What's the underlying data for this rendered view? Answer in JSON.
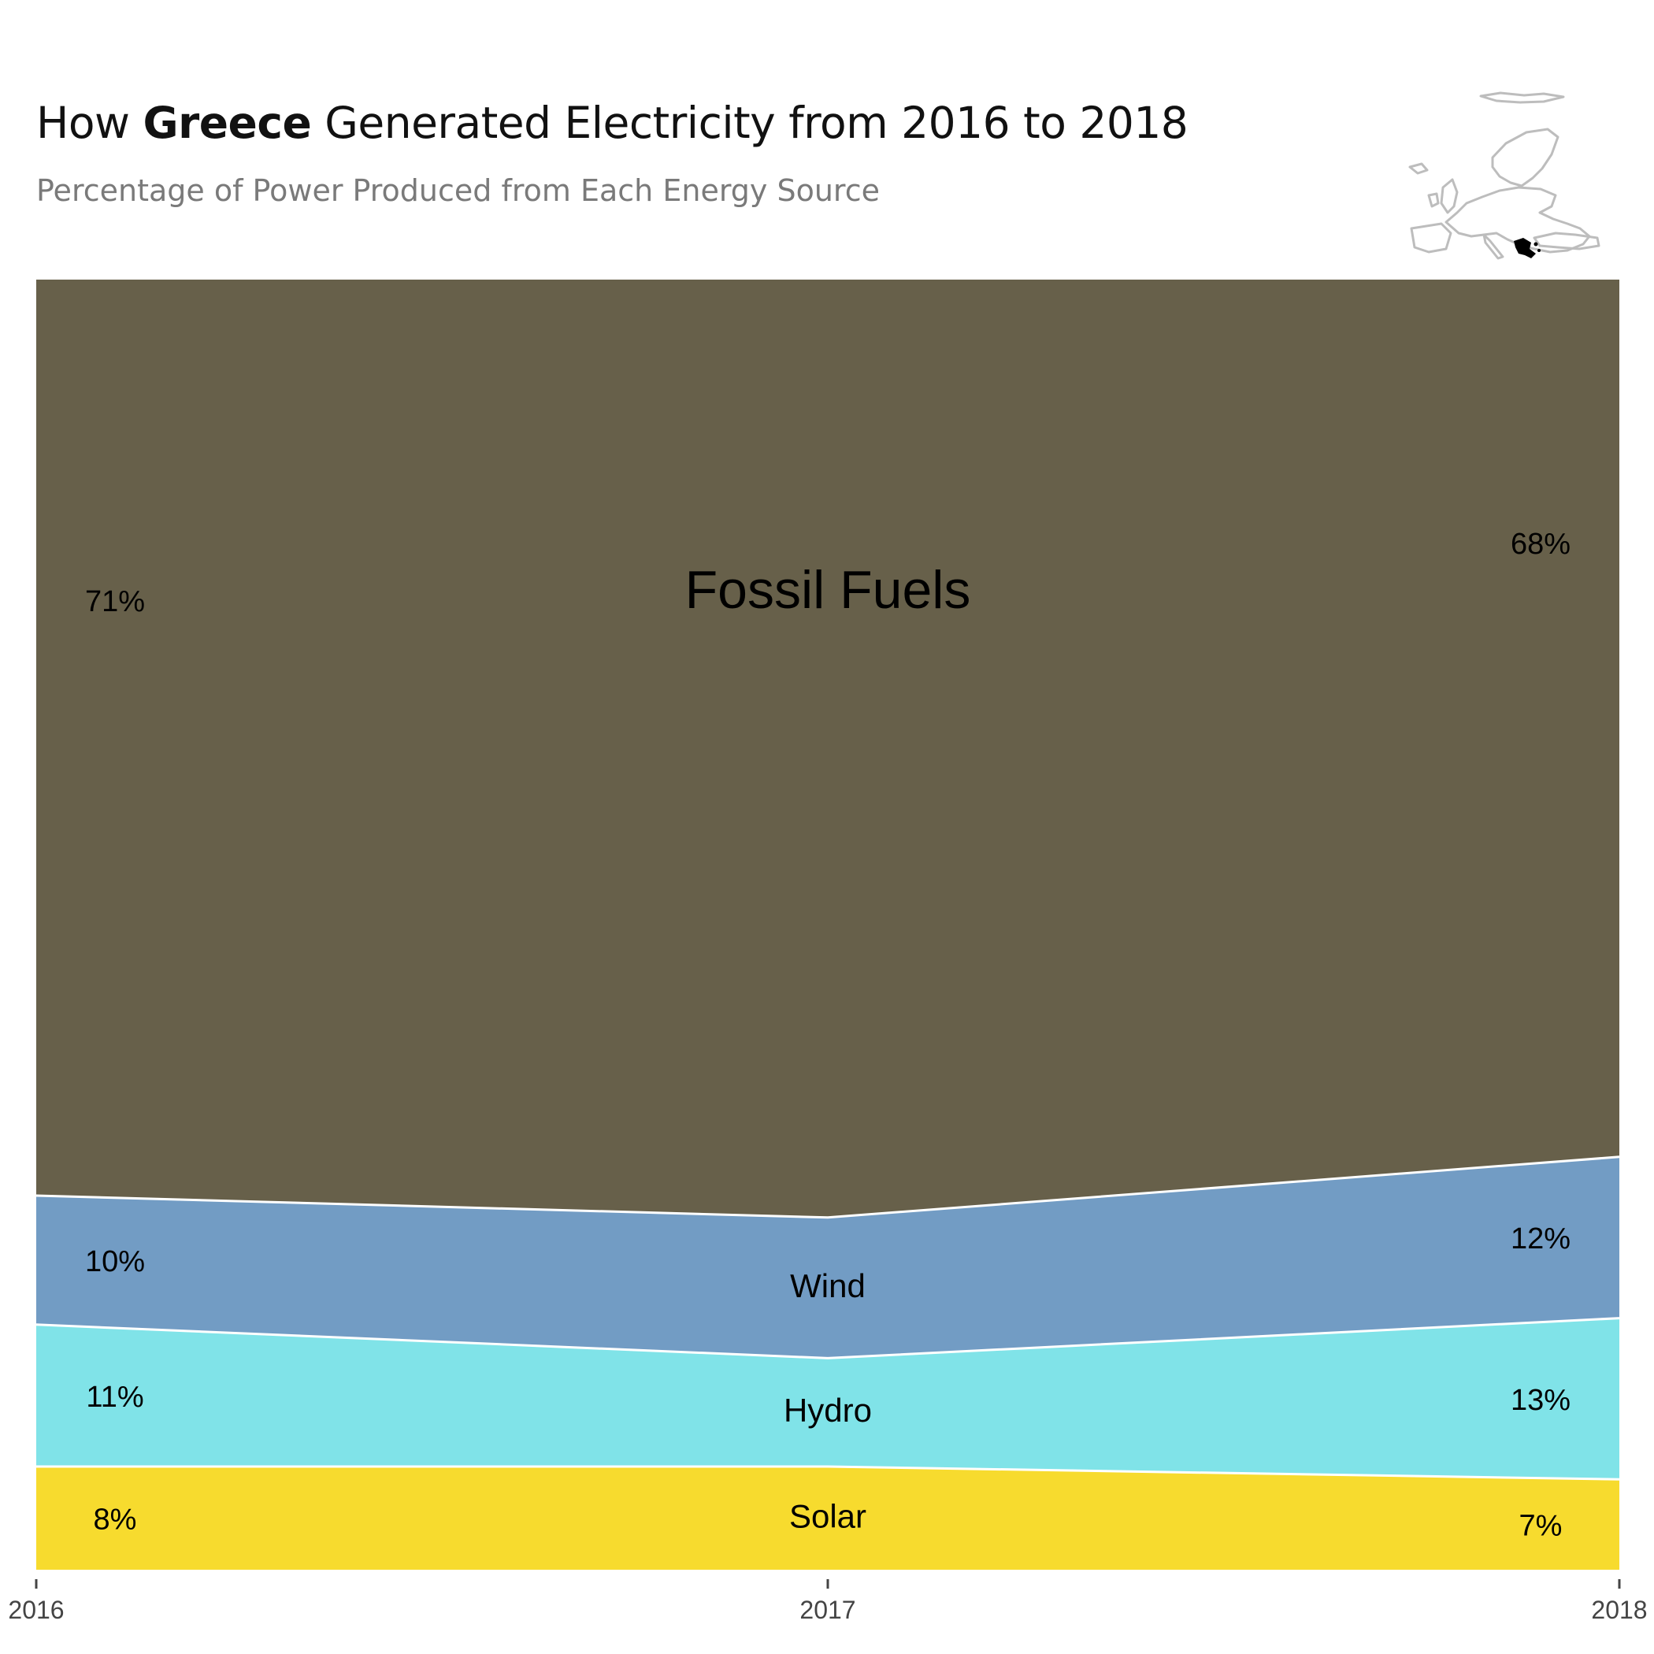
{
  "header": {
    "title_prefix": "How ",
    "title_country": "Greece",
    "title_suffix": " Generated Electricity from 2016 to 2018",
    "subtitle": "Percentage of Power Produced from Each Energy Source"
  },
  "chart_data": {
    "type": "area",
    "subtype": "100% stacked area",
    "x": [
      2016,
      2017,
      2018
    ],
    "x_tick_labels": [
      "2016",
      "2017",
      "2018"
    ],
    "ylim": [
      0,
      100
    ],
    "grid": false,
    "series": [
      {
        "name": "Solar",
        "values": [
          8,
          8,
          7
        ],
        "color": "#f7db2e",
        "end_labels": [
          "8%",
          "7%"
        ]
      },
      {
        "name": "Hydro",
        "values": [
          11,
          8.4,
          12.5
        ],
        "color": "#80e3e8",
        "end_labels": [
          "11%",
          "13%"
        ]
      },
      {
        "name": "Wind",
        "values": [
          10,
          10.9,
          12.5
        ],
        "color": "#729cc4",
        "end_labels": [
          "10%",
          "12%"
        ]
      },
      {
        "name": "Fossil Fuels",
        "values": [
          71,
          72.7,
          68
        ],
        "color": "#67604a",
        "end_labels": [
          "71%",
          "68%"
        ]
      }
    ],
    "separator_color": "#ffffff"
  },
  "inset_map": {
    "region": "Europe",
    "highlighted_country": "Greece",
    "outline_color": "#bdbdbd",
    "highlight_color": "#000000"
  }
}
